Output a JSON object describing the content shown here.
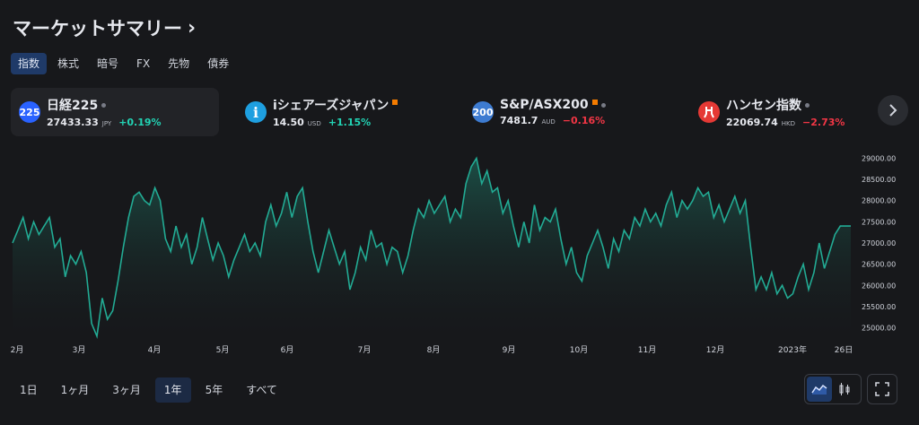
{
  "header": {
    "title": "マーケットサマリー",
    "chevron": "›"
  },
  "tabs": [
    {
      "label": "指数",
      "active": true
    },
    {
      "label": "株式",
      "active": false
    },
    {
      "label": "暗号",
      "active": false
    },
    {
      "label": "FX",
      "active": false
    },
    {
      "label": "先物",
      "active": false
    },
    {
      "label": "債券",
      "active": false
    }
  ],
  "tickers": [
    {
      "icon_text": "225",
      "icon_color": "#2962ff",
      "name": "日経225",
      "price": "27433.33",
      "currency": "JPY",
      "change": "+0.19%",
      "direction": "up",
      "marker": "dot"
    },
    {
      "icon_text": "i",
      "icon_color": "#1e9fe0",
      "name": "iシェアーズジャパン",
      "price": "14.50",
      "currency": "USD",
      "change": "+1.15%",
      "direction": "up",
      "marker": "square"
    },
    {
      "icon_text": "200",
      "icon_color": "#3d7bd1",
      "name": "S&P/ASX200",
      "price": "7481.7",
      "currency": "AUD",
      "change": "−0.16%",
      "direction": "down",
      "marker": "square-dot"
    },
    {
      "icon_text": "ハ",
      "icon_color": "#e53935",
      "name": "ハンセン指数",
      "price": "22069.74",
      "currency": "HKD",
      "change": "−2.73%",
      "direction": "down",
      "marker": "dot"
    }
  ],
  "next_icon": "chevron-right-icon",
  "chart_data": {
    "type": "area",
    "series": [
      {
        "values": [
          27000,
          27300,
          27600,
          27100,
          27500,
          27200,
          27400,
          27600,
          26900,
          27100,
          26200,
          26700,
          26500,
          26800,
          26300,
          25100,
          24800,
          25700,
          25200,
          25400,
          26100,
          26900,
          27600,
          28100,
          28200,
          28000,
          27900,
          28300,
          28000,
          27100,
          26800,
          27400,
          26900,
          27200,
          26500,
          26900,
          27600,
          27100,
          26600,
          27000,
          26700,
          26200,
          26600,
          26900,
          27200,
          26800,
          27000,
          26700,
          27500,
          27900,
          27400,
          27700,
          28200,
          27600,
          28100,
          28300,
          27500,
          26800,
          26300,
          26800,
          27300,
          26900,
          26500,
          26800,
          25900,
          26300,
          26900,
          26600,
          27300,
          26900,
          27000,
          26500,
          26900,
          26800,
          26300,
          26700,
          27300,
          27800,
          27600,
          28000,
          27700,
          27900,
          28100,
          27500,
          27800,
          27600,
          28400,
          28800,
          29000,
          28400,
          28700,
          28200,
          28300,
          27700,
          28000,
          27400,
          26900,
          27500,
          27000,
          27900,
          27300,
          27600,
          27500,
          27800,
          27100,
          26500,
          26900,
          26300,
          26100,
          26700,
          27000,
          27300,
          26900,
          26400,
          27100,
          26800,
          27300,
          27100,
          27600,
          27400,
          27800,
          27500,
          27700,
          27400,
          27900,
          28200,
          27600,
          28000,
          27800,
          28000,
          28300,
          28100,
          28200,
          27600,
          27900,
          27500,
          27800,
          28100,
          27700,
          28000,
          26900,
          25900,
          26200,
          25900,
          26300,
          25800,
          26000,
          25700,
          25800,
          26200,
          26500,
          25900,
          26300,
          27000,
          26400,
          26800,
          27200,
          27400,
          27400,
          27400
        ],
        "color": "#22ab94"
      }
    ],
    "x_labels": [
      "2月",
      "3月",
      "4月",
      "5月",
      "6月",
      "7月",
      "8月",
      "9月",
      "10月",
      "11月",
      "12月",
      "2023年",
      "26日"
    ],
    "y_ticks": [
      "29000.00",
      "28500.00",
      "28000.00",
      "27500.00",
      "27000.00",
      "26500.00",
      "26000.00",
      "25500.00",
      "25000.00"
    ],
    "ylim": [
      24800,
      29200
    ],
    "grid": false
  },
  "ranges": [
    {
      "label": "1日",
      "active": false
    },
    {
      "label": "1ヶ月",
      "active": false
    },
    {
      "label": "3ヶ月",
      "active": false
    },
    {
      "label": "1年",
      "active": true
    },
    {
      "label": "5年",
      "active": false
    },
    {
      "label": "すべて",
      "active": false
    }
  ],
  "controls": {
    "area_icon": "area-chart-icon",
    "candle_icon": "candlestick-icon",
    "fullscreen_icon": "fullscreen-icon"
  }
}
